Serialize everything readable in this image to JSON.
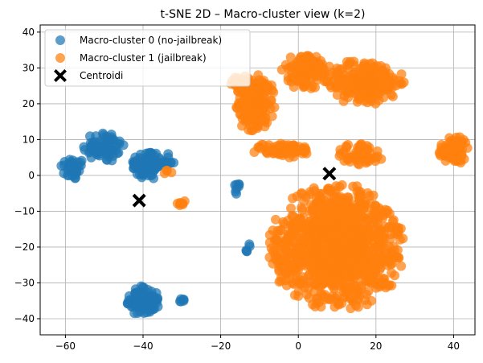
{
  "chart_data": {
    "type": "scatter",
    "title": "t-SNE 2D – Macro-cluster view (k=2)",
    "xlabel": "",
    "ylabel": "",
    "xlim": [
      -66.5,
      45.5
    ],
    "ylim": [
      -44.5,
      42
    ],
    "grid": true,
    "legend_placement": "top-left",
    "x_ticks": [
      -60,
      -40,
      -20,
      0,
      20,
      40
    ],
    "y_ticks": [
      -40,
      -30,
      -20,
      -10,
      0,
      10,
      20,
      30,
      40
    ],
    "series": [
      {
        "name": "Macro-cluster 0 (no-jailbreak)",
        "color": "#1f77b4",
        "marker": "circle",
        "clusters": [
          {
            "cx": -58,
            "cy": 2,
            "rx": 3,
            "ry": 3,
            "n": 40
          },
          {
            "cx": -50,
            "cy": 8,
            "rx": 5,
            "ry": 4,
            "n": 70
          },
          {
            "cx": -39,
            "cy": 3,
            "rx": 4,
            "ry": 4,
            "n": 90
          },
          {
            "cx": -34,
            "cy": 4,
            "rx": 2,
            "ry": 2,
            "n": 12
          },
          {
            "cx": -40,
            "cy": -35,
            "rx": 4,
            "ry": 4,
            "n": 100
          },
          {
            "cx": -30,
            "cy": -35,
            "rx": 1,
            "ry": 1,
            "n": 6
          },
          {
            "cx": -16,
            "cy": -4,
            "rx": 1,
            "ry": 2,
            "n": 8
          },
          {
            "cx": -13,
            "cy": -21,
            "rx": 1,
            "ry": 2,
            "n": 5
          }
        ]
      },
      {
        "name": "Macro-cluster 1 (jailbreak)",
        "color": "#ff7f0e",
        "marker": "circle",
        "clusters": [
          {
            "cx": -11,
            "cy": 20,
            "rx": 5,
            "ry": 8,
            "n": 170
          },
          {
            "cx": 2,
            "cy": 29,
            "rx": 6,
            "ry": 5,
            "n": 110
          },
          {
            "cx": 17,
            "cy": 26,
            "rx": 10,
            "ry": 6,
            "n": 210
          },
          {
            "cx": -4,
            "cy": 7,
            "rx": 8,
            "ry": 2,
            "n": 70
          },
          {
            "cx": 16,
            "cy": 6,
            "rx": 6,
            "ry": 3,
            "n": 50
          },
          {
            "cx": 40,
            "cy": 7,
            "rx": 4,
            "ry": 4,
            "n": 60
          },
          {
            "cx": 10,
            "cy": -20,
            "rx": 17,
            "ry": 17,
            "n": 1100
          },
          {
            "cx": -30,
            "cy": -8,
            "rx": 1.5,
            "ry": 1,
            "n": 7
          },
          {
            "cx": -34,
            "cy": 1,
            "rx": 1.5,
            "ry": 1,
            "n": 4
          },
          {
            "cx": -15,
            "cy": 26,
            "rx": 3,
            "ry": 2,
            "n": 25
          }
        ]
      },
      {
        "name": "Centroidi",
        "color": "#000000",
        "marker": "X",
        "points": [
          {
            "x": -41,
            "y": -7
          },
          {
            "x": 8,
            "y": 0.5
          }
        ]
      }
    ]
  }
}
